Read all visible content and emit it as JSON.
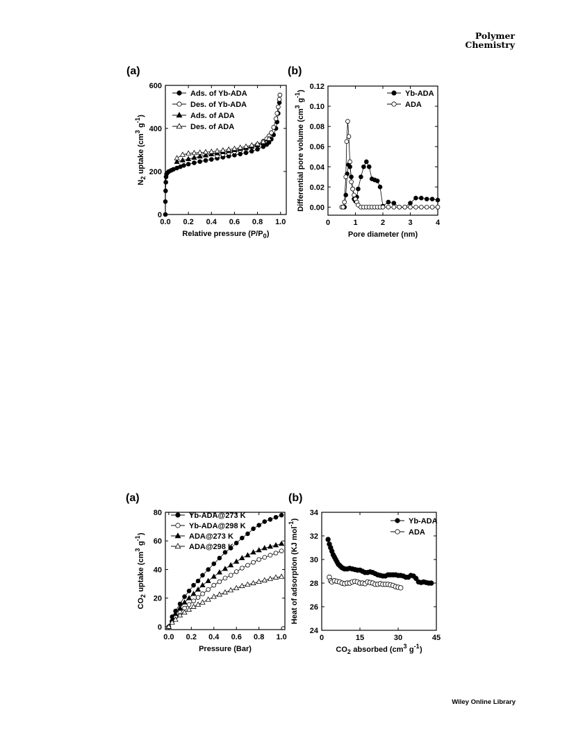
{
  "header": {
    "journal_line1": "Polymer",
    "journal_line2": "Chemistry"
  },
  "footer": {
    "publisher": "Wiley Online Library"
  },
  "chart_data": [
    {
      "id": "n2",
      "panel_label": "(a)",
      "type": "scatter",
      "xlabel": "Relative pressure (P/P",
      "xlabel_sub": "0",
      "xlabel_tail": ")",
      "ylabel": "N",
      "ylabel_sub": "2",
      "ylabel_mid": " uptake (cm",
      "ylabel_sup": "3",
      "ylabel_g": " g",
      "ylabel_sup2": "-1",
      "ylabel_tail": ")",
      "xlim": [
        0,
        1.05
      ],
      "ylim": [
        0,
        600
      ],
      "xticks": [
        0,
        0.2,
        0.4,
        0.6,
        0.8,
        1.0
      ],
      "xtick_labels": [
        "0.0",
        "0.2",
        "0.4",
        "0.6",
        "0.8",
        "1.0"
      ],
      "yticks": [
        0,
        200,
        400,
        600
      ],
      "ytick_labels": [
        "0",
        "200",
        "400",
        "600"
      ],
      "legend_position": "top-left",
      "series": [
        {
          "name": "Ads. of Yb-ADA",
          "marker": "circle",
          "fill": "black",
          "line": true,
          "x": [
            0.0,
            0.0,
            0.002,
            0.004,
            0.006,
            0.01,
            0.02,
            0.03,
            0.05,
            0.07,
            0.1,
            0.13,
            0.16,
            0.2,
            0.25,
            0.3,
            0.35,
            0.4,
            0.45,
            0.5,
            0.55,
            0.6,
            0.65,
            0.7,
            0.75,
            0.8,
            0.85,
            0.88,
            0.9,
            0.92,
            0.94,
            0.96,
            0.97,
            0.98,
            0.99,
            0.995
          ],
          "y": [
            0,
            60,
            110,
            150,
            175,
            188,
            195,
            200,
            205,
            210,
            216,
            222,
            228,
            234,
            240,
            246,
            251,
            256,
            261,
            266,
            271,
            276,
            281,
            287,
            294,
            303,
            315,
            325,
            335,
            350,
            370,
            400,
            430,
            470,
            520,
            555
          ]
        },
        {
          "name": "Des. of Yb-ADA",
          "marker": "circle",
          "fill": "white",
          "line": true,
          "x": [
            0.995,
            0.99,
            0.98,
            0.97,
            0.96,
            0.94,
            0.92,
            0.9,
            0.88,
            0.85,
            0.8,
            0.75,
            0.7,
            0.65,
            0.6,
            0.55,
            0.5,
            0.45
          ],
          "y": [
            555,
            535,
            500,
            470,
            445,
            405,
            380,
            365,
            352,
            340,
            325,
            315,
            306,
            298,
            291,
            285,
            279,
            273
          ]
        },
        {
          "name": "Ads. of ADA",
          "marker": "triangle",
          "fill": "black",
          "line": true,
          "x": [
            0.1,
            0.15,
            0.2,
            0.25,
            0.3,
            0.35,
            0.4,
            0.45,
            0.5,
            0.55,
            0.6,
            0.65,
            0.7,
            0.75,
            0.8,
            0.85,
            0.9
          ],
          "y": [
            245,
            252,
            258,
            264,
            270,
            275,
            280,
            285,
            290,
            295,
            300,
            305,
            310,
            315,
            322,
            332,
            350
          ]
        },
        {
          "name": "Des. of ADA",
          "marker": "triangle",
          "fill": "white",
          "line": true,
          "x": [
            0.9,
            0.85,
            0.8,
            0.75,
            0.7,
            0.65,
            0.6,
            0.55,
            0.5,
            0.45,
            0.4,
            0.35,
            0.3,
            0.25,
            0.2,
            0.15,
            0.1
          ],
          "y": [
            352,
            338,
            328,
            322,
            316,
            311,
            306,
            302,
            298,
            295,
            292,
            290,
            288,
            286,
            284,
            278,
            262
          ]
        }
      ]
    },
    {
      "id": "psd",
      "panel_label": "(b)",
      "type": "scatter",
      "xlabel": "Pore diameter (nm)",
      "ylabel": "Differential pore volume (cm",
      "ylabel_sup": "3",
      "ylabel_g": " g",
      "ylabel_sup2": "-1",
      "ylabel_tail": ")",
      "xlim": [
        0,
        4
      ],
      "ylim": [
        -0.008,
        0.12
      ],
      "xticks": [
        0,
        1,
        2,
        3,
        4
      ],
      "xtick_labels": [
        "0",
        "1",
        "2",
        "3",
        "4"
      ],
      "yticks": [
        0,
        0.02,
        0.04,
        0.06,
        0.08,
        0.1,
        0.12
      ],
      "ytick_labels": [
        "0.00",
        "0.02",
        "0.04",
        "0.06",
        "0.08",
        "0.10",
        "0.12"
      ],
      "legend_position": "top-right",
      "series": [
        {
          "name": "Yb-ADA",
          "marker": "circle",
          "fill": "black",
          "line": true,
          "x": [
            0.55,
            0.6,
            0.65,
            0.7,
            0.75,
            0.8,
            0.85,
            0.9,
            0.95,
            1.0,
            1.05,
            1.1,
            1.2,
            1.3,
            1.4,
            1.5,
            1.6,
            1.7,
            1.8,
            1.9,
            2.0,
            2.2,
            2.4,
            2.6,
            2.8,
            3.0,
            3.2,
            3.4,
            3.6,
            3.8,
            4.0
          ],
          "y": [
            0.0,
            0.0,
            0.012,
            0.033,
            0.042,
            0.04,
            0.03,
            0.018,
            0.008,
            0.006,
            0.01,
            0.018,
            0.03,
            0.04,
            0.045,
            0.04,
            0.028,
            0.027,
            0.026,
            0.02,
            0.001,
            0.005,
            0.004,
            0.0,
            0.0,
            0.004,
            0.009,
            0.009,
            0.008,
            0.008,
            0.007
          ]
        },
        {
          "name": "ADA",
          "marker": "circle",
          "fill": "white",
          "line": true,
          "x": [
            0.5,
            0.55,
            0.6,
            0.65,
            0.68,
            0.72,
            0.76,
            0.8,
            0.85,
            0.9,
            0.95,
            1.0,
            1.05,
            1.1,
            1.2,
            1.3,
            1.4,
            1.5,
            1.6,
            1.7,
            1.8,
            1.9,
            2.0,
            2.2,
            2.4,
            2.6,
            2.8,
            3.0,
            3.2,
            3.4,
            3.6,
            3.8,
            4.0
          ],
          "y": [
            0.0,
            0.0,
            0.005,
            0.03,
            0.065,
            0.085,
            0.07,
            0.045,
            0.025,
            0.018,
            0.012,
            0.008,
            0.005,
            0.002,
            0.0,
            0.0,
            0.0,
            0.0,
            0.0,
            0.0,
            0.0,
            0.0,
            0.0,
            0.0,
            0.0,
            0.0,
            0.0,
            0.0,
            0.0,
            0.0,
            0.0,
            0.0,
            0.0
          ]
        }
      ]
    },
    {
      "id": "co2",
      "panel_label": "(a)",
      "type": "scatter",
      "xlabel": "Pressure (Bar)",
      "ylabel": "CO",
      "ylabel_sub": "2",
      "ylabel_mid": " uptake (cm",
      "ylabel_sup": "3",
      "ylabel_g": " g",
      "ylabel_sup2": "-1",
      "ylabel_tail": ")",
      "xlim": [
        -0.03,
        1.03
      ],
      "ylim": [
        -2,
        80
      ],
      "xticks": [
        0,
        0.2,
        0.4,
        0.6,
        0.8,
        1.0
      ],
      "xtick_labels": [
        "0.0",
        "0.2",
        "0.4",
        "0.6",
        "0.8",
        "1.0"
      ],
      "yticks": [
        0,
        20,
        40,
        60,
        80
      ],
      "ytick_labels": [
        "0",
        "20",
        "40",
        "60",
        "80"
      ],
      "legend_position": "top-left",
      "series": [
        {
          "name": "Yb-ADA@273 K",
          "marker": "circle",
          "fill": "black",
          "line": true,
          "x": [
            0.0,
            0.03,
            0.06,
            0.1,
            0.14,
            0.18,
            0.22,
            0.26,
            0.3,
            0.35,
            0.4,
            0.45,
            0.5,
            0.55,
            0.6,
            0.65,
            0.7,
            0.75,
            0.8,
            0.85,
            0.9,
            0.95,
            1.0
          ],
          "y": [
            0,
            7,
            11,
            16,
            21,
            25,
            29,
            32,
            36,
            40,
            44,
            48,
            52,
            55,
            58.5,
            62,
            65,
            68.5,
            71,
            73.5,
            75,
            76.5,
            78
          ]
        },
        {
          "name": "Yb-ADA@298 K",
          "marker": "circle",
          "fill": "white",
          "line": true,
          "x": [
            0.0,
            0.03,
            0.06,
            0.1,
            0.14,
            0.18,
            0.22,
            0.26,
            0.3,
            0.35,
            0.4,
            0.45,
            0.5,
            0.55,
            0.6,
            0.65,
            0.7,
            0.75,
            0.8,
            0.85,
            0.9,
            0.95,
            1.0
          ],
          "y": [
            0,
            4,
            7,
            10,
            13,
            15.5,
            18,
            20.5,
            23,
            26,
            29,
            31.5,
            34,
            36,
            38.5,
            41,
            43,
            45,
            47,
            48.5,
            50,
            51.5,
            53
          ]
        },
        {
          "name": "ADA@273 K",
          "marker": "triangle",
          "fill": "black",
          "line": true,
          "x": [
            0.0,
            0.03,
            0.06,
            0.1,
            0.14,
            0.18,
            0.22,
            0.26,
            0.3,
            0.35,
            0.4,
            0.45,
            0.5,
            0.55,
            0.6,
            0.65,
            0.7,
            0.75,
            0.8,
            0.85,
            0.9,
            0.95,
            1.0
          ],
          "y": [
            0,
            5,
            9,
            13,
            17,
            20,
            23,
            26,
            29,
            32,
            35,
            38,
            40.5,
            43,
            45.5,
            48,
            50,
            52,
            53.5,
            55,
            56,
            57,
            58
          ]
        },
        {
          "name": "ADA@298 K",
          "marker": "triangle",
          "fill": "white",
          "line": true,
          "x": [
            0.0,
            0.03,
            0.06,
            0.1,
            0.14,
            0.18,
            0.22,
            0.26,
            0.3,
            0.35,
            0.4,
            0.45,
            0.5,
            0.55,
            0.6,
            0.65,
            0.7,
            0.75,
            0.8,
            0.85,
            0.9,
            0.95,
            1.0
          ],
          "y": [
            0,
            3,
            5,
            8,
            10,
            12,
            14,
            15.5,
            17,
            19,
            21,
            22.5,
            24,
            25.5,
            27,
            28.5,
            29.5,
            30.5,
            31.5,
            32.5,
            33.5,
            34.5,
            35
          ]
        }
      ]
    },
    {
      "id": "heat",
      "panel_label": "(b)",
      "type": "scatter",
      "xlabel": "CO",
      "xlabel_sub": "2",
      "xlabel_tail": " absorbed (cm",
      "xlabel_sup": "3",
      "xlabel_g": " g",
      "xlabel_sup2": "-1",
      "xlabel_end": ")",
      "ylabel": "Heat of adsorption (KJ mol",
      "ylabel_sup": "-1",
      "ylabel_tail": ")",
      "xlim": [
        0,
        45
      ],
      "ylim": [
        24,
        34
      ],
      "xticks": [
        0,
        15,
        30,
        45
      ],
      "xtick_labels": [
        "0",
        "15",
        "30",
        "45"
      ],
      "yticks": [
        24,
        26,
        28,
        30,
        32,
        34
      ],
      "ytick_labels": [
        "24",
        "26",
        "28",
        "30",
        "32",
        "34"
      ],
      "legend_position": "top-right",
      "series": [
        {
          "name": "Yb-ADA",
          "marker": "circle",
          "fill": "black",
          "line": false,
          "x": [
            2.5,
            3,
            3.5,
            4,
            4.5,
            5,
            5.5,
            6,
            6.5,
            7,
            7.5,
            8,
            8.5,
            9,
            10,
            11,
            12,
            13,
            14,
            15,
            16,
            17,
            18,
            19,
            20,
            21,
            22,
            23,
            24,
            25,
            26,
            27,
            28,
            29,
            30,
            31,
            32,
            33,
            34,
            35,
            36,
            37,
            38,
            39,
            40,
            41,
            42,
            43
          ],
          "y": [
            31.7,
            31.3,
            31.0,
            30.7,
            30.4,
            30.2,
            30.0,
            29.8,
            29.6,
            29.5,
            29.4,
            29.3,
            29.25,
            29.2,
            29.2,
            29.25,
            29.2,
            29.15,
            29.1,
            29.1,
            29.0,
            28.9,
            28.9,
            28.95,
            28.9,
            28.8,
            28.7,
            28.65,
            28.6,
            28.6,
            28.7,
            28.7,
            28.7,
            28.7,
            28.65,
            28.65,
            28.6,
            28.5,
            28.5,
            28.65,
            28.6,
            28.4,
            28.1,
            28.05,
            28.1,
            28.05,
            28.0,
            28.0
          ]
        },
        {
          "name": "ADA",
          "marker": "circle",
          "fill": "white",
          "line": false,
          "x": [
            3,
            3.5,
            4,
            5,
            6,
            7,
            8,
            9,
            10,
            11,
            12,
            13,
            14,
            15,
            16,
            17,
            18,
            19,
            20,
            21,
            22,
            23,
            24,
            25,
            26,
            27,
            28,
            29,
            30,
            31
          ],
          "y": [
            28.5,
            28.2,
            28.1,
            28.2,
            28.15,
            28.1,
            28.0,
            27.95,
            28.0,
            28.0,
            28.1,
            28.15,
            28.1,
            28.0,
            28.0,
            27.95,
            28.1,
            28.05,
            28.0,
            27.9,
            27.9,
            27.95,
            27.9,
            27.9,
            27.9,
            27.85,
            27.8,
            27.7,
            27.65,
            27.6
          ]
        }
      ]
    }
  ]
}
